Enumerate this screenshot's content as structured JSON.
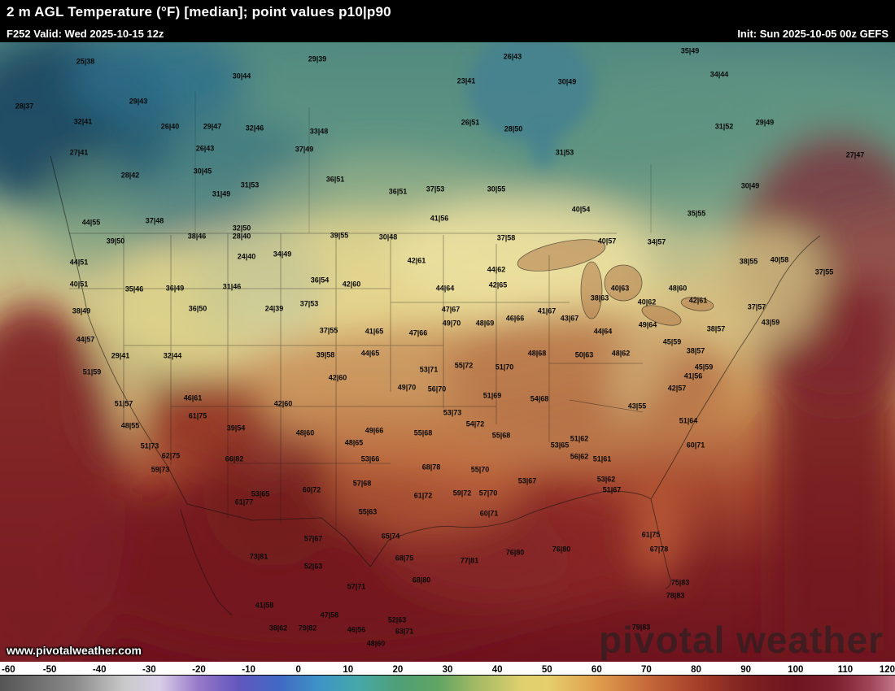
{
  "header": {
    "title": "2 m AGL Temperature (°F) [median]; point values p10|p90",
    "valid": "F252 Valid: Wed 2025-10-15 12z",
    "init": "Init: Sun 2025-10-05 00z GEFS"
  },
  "watermarks": {
    "url": "www.pivotalweather.com",
    "brand": "pivotal weather"
  },
  "colorbar": {
    "min": -60,
    "max": 120,
    "ticks": [
      -60,
      -50,
      -40,
      -30,
      -20,
      -10,
      0,
      10,
      20,
      30,
      40,
      50,
      60,
      70,
      80,
      90,
      100,
      110,
      120
    ],
    "gradient": [
      {
        "t": -60,
        "c": "#555555"
      },
      {
        "t": -45,
        "c": "#8a8a8a"
      },
      {
        "t": -35,
        "c": "#c9c9c9"
      },
      {
        "t": -28,
        "c": "#d9cfe8"
      },
      {
        "t": -20,
        "c": "#9678c8"
      },
      {
        "t": -12,
        "c": "#6257be"
      },
      {
        "t": -4,
        "c": "#4168c4"
      },
      {
        "t": 4,
        "c": "#3e93c6"
      },
      {
        "t": 12,
        "c": "#45a8a8"
      },
      {
        "t": 20,
        "c": "#4f9f77"
      },
      {
        "t": 28,
        "c": "#5fa463"
      },
      {
        "t": 35,
        "c": "#9db863"
      },
      {
        "t": 45,
        "c": "#dfd06e"
      },
      {
        "t": 50,
        "c": "#e6cf6d"
      },
      {
        "t": 60,
        "c": "#df9e4c"
      },
      {
        "t": 70,
        "c": "#c66a3b"
      },
      {
        "t": 80,
        "c": "#a6402a"
      },
      {
        "t": 90,
        "c": "#7f2220"
      },
      {
        "t": 100,
        "c": "#6d1520"
      },
      {
        "t": 108,
        "c": "#7c1f2e"
      },
      {
        "t": 115,
        "c": "#a04458"
      },
      {
        "t": 120,
        "c": "#c27687"
      }
    ]
  },
  "map_points": [
    [
      105,
      76,
      "25|38"
    ],
    [
      297,
      94,
      "30|44"
    ],
    [
      390,
      73,
      "29|39"
    ],
    [
      630,
      70,
      "26|43"
    ],
    [
      848,
      63,
      "35|49"
    ],
    [
      884,
      92,
      "34|44"
    ],
    [
      697,
      101,
      "30|49"
    ],
    [
      573,
      100,
      "23|41"
    ],
    [
      30,
      131,
      "28|37"
    ],
    [
      170,
      125,
      "29|43"
    ],
    [
      102,
      150,
      "32|41"
    ],
    [
      209,
      156,
      "26|40"
    ],
    [
      261,
      156,
      "29|47"
    ],
    [
      313,
      158,
      "32|46"
    ],
    [
      392,
      162,
      "33|48"
    ],
    [
      578,
      151,
      "26|51"
    ],
    [
      631,
      159,
      "28|50"
    ],
    [
      890,
      156,
      "31|52"
    ],
    [
      940,
      151,
      "29|49"
    ],
    [
      1051,
      191,
      "27|47"
    ],
    [
      97,
      188,
      "27|41"
    ],
    [
      252,
      183,
      "26|43"
    ],
    [
      374,
      184,
      "37|49"
    ],
    [
      694,
      188,
      "31|53"
    ],
    [
      160,
      216,
      "28|42"
    ],
    [
      249,
      211,
      "30|45"
    ],
    [
      412,
      221,
      "36|51"
    ],
    [
      307,
      228,
      "31|53"
    ],
    [
      272,
      239,
      "31|49"
    ],
    [
      489,
      236,
      "36|51"
    ],
    [
      535,
      233,
      "37|53"
    ],
    [
      610,
      233,
      "30|55"
    ],
    [
      922,
      229,
      "30|49"
    ],
    [
      856,
      263,
      "35|55"
    ],
    [
      714,
      258,
      "40|54"
    ],
    [
      540,
      269,
      "41|56"
    ],
    [
      112,
      274,
      "44|55"
    ],
    [
      190,
      272,
      "37|48"
    ],
    [
      297,
      281,
      "32|50"
    ],
    [
      142,
      297,
      "39|50"
    ],
    [
      242,
      291,
      "38|46"
    ],
    [
      297,
      291,
      "28|40"
    ],
    [
      417,
      290,
      "39|55"
    ],
    [
      477,
      292,
      "30|48"
    ],
    [
      622,
      293,
      "37|58"
    ],
    [
      746,
      297,
      "40|57"
    ],
    [
      807,
      298,
      "34|57"
    ],
    [
      920,
      322,
      "38|55"
    ],
    [
      958,
      320,
      "40|58"
    ],
    [
      1013,
      335,
      "37|55"
    ],
    [
      97,
      323,
      "44|51"
    ],
    [
      303,
      316,
      "24|40"
    ],
    [
      347,
      313,
      "34|49"
    ],
    [
      512,
      321,
      "42|61"
    ],
    [
      610,
      332,
      "44|62"
    ],
    [
      97,
      350,
      "40|51"
    ],
    [
      165,
      356,
      "35|46"
    ],
    [
      215,
      355,
      "36|49"
    ],
    [
      285,
      353,
      "31|46"
    ],
    [
      393,
      345,
      "36|54"
    ],
    [
      432,
      350,
      "42|60"
    ],
    [
      547,
      355,
      "44|64"
    ],
    [
      612,
      351,
      "42|65"
    ],
    [
      762,
      355,
      "40|63"
    ],
    [
      833,
      355,
      "48|60"
    ],
    [
      737,
      367,
      "38|63"
    ],
    [
      795,
      372,
      "40|62"
    ],
    [
      858,
      370,
      "42|61"
    ],
    [
      930,
      378,
      "37|57"
    ],
    [
      947,
      397,
      "43|59"
    ],
    [
      100,
      383,
      "38|49"
    ],
    [
      243,
      380,
      "36|50"
    ],
    [
      337,
      380,
      "24|39"
    ],
    [
      380,
      374,
      "37|53"
    ],
    [
      404,
      407,
      "37|55"
    ],
    [
      554,
      381,
      "47|67"
    ],
    [
      633,
      392,
      "46|66"
    ],
    [
      672,
      383,
      "41|67"
    ],
    [
      700,
      392,
      "43|67"
    ],
    [
      555,
      398,
      "49|70"
    ],
    [
      596,
      398,
      "48|69"
    ],
    [
      460,
      408,
      "41|65"
    ],
    [
      514,
      410,
      "47|66"
    ],
    [
      741,
      408,
      "44|64"
    ],
    [
      796,
      400,
      "49|64"
    ],
    [
      880,
      405,
      "38|57"
    ],
    [
      826,
      421,
      "45|59"
    ],
    [
      855,
      432,
      "38|57"
    ],
    [
      105,
      418,
      "44|57"
    ],
    [
      148,
      438,
      "29|41"
    ],
    [
      212,
      438,
      "32|44"
    ],
    [
      400,
      437,
      "39|58"
    ],
    [
      455,
      435,
      "44|65"
    ],
    [
      527,
      455,
      "53|71"
    ],
    [
      570,
      450,
      "55|72"
    ],
    [
      620,
      452,
      "51|70"
    ],
    [
      660,
      435,
      "48|68"
    ],
    [
      718,
      437,
      "50|63"
    ],
    [
      763,
      435,
      "48|62"
    ],
    [
      865,
      452,
      "45|59"
    ],
    [
      852,
      463,
      "41|56"
    ],
    [
      113,
      458,
      "51|59"
    ],
    [
      152,
      497,
      "51|57"
    ],
    [
      237,
      490,
      "46|61"
    ],
    [
      348,
      497,
      "42|60"
    ],
    [
      415,
      465,
      "42|60"
    ],
    [
      500,
      477,
      "49|70"
    ],
    [
      537,
      479,
      "56|70"
    ],
    [
      605,
      487,
      "51|69"
    ],
    [
      663,
      491,
      "54|68"
    ],
    [
      783,
      500,
      "43|55"
    ],
    [
      832,
      478,
      "42|57"
    ],
    [
      556,
      508,
      "53|73"
    ],
    [
      584,
      522,
      "54|72"
    ],
    [
      616,
      536,
      "55|68"
    ],
    [
      688,
      548,
      "53|65"
    ],
    [
      712,
      540,
      "51|62"
    ],
    [
      160,
      524,
      "48|55"
    ],
    [
      184,
      549,
      "51|73"
    ],
    [
      243,
      512,
      "61|75"
    ],
    [
      210,
      561,
      "62|75"
    ],
    [
      197,
      578,
      "59|73"
    ],
    [
      288,
      565,
      "66|82"
    ],
    [
      300,
      618,
      "61|77"
    ],
    [
      290,
      527,
      "39|54"
    ],
    [
      375,
      533,
      "48|60"
    ],
    [
      435,
      545,
      "48|65"
    ],
    [
      460,
      530,
      "49|66"
    ],
    [
      520,
      533,
      "55|68"
    ],
    [
      455,
      565,
      "53|66"
    ],
    [
      530,
      575,
      "68|78"
    ],
    [
      590,
      578,
      "55|70"
    ],
    [
      320,
      608,
      "53|65"
    ],
    [
      383,
      603,
      "60|72"
    ],
    [
      445,
      595,
      "57|68"
    ],
    [
      452,
      630,
      "55|63"
    ],
    [
      520,
      610,
      "61|72"
    ],
    [
      568,
      607,
      "59|72"
    ],
    [
      600,
      607,
      "57|70"
    ],
    [
      601,
      632,
      "60|71"
    ],
    [
      648,
      592,
      "53|67"
    ],
    [
      745,
      590,
      "53|62"
    ],
    [
      752,
      603,
      "51|67"
    ],
    [
      740,
      565,
      "51|61"
    ],
    [
      712,
      562,
      "56|62"
    ],
    [
      855,
      548,
      "60|71"
    ],
    [
      846,
      518,
      "51|64"
    ],
    [
      800,
      658,
      "61|75"
    ],
    [
      810,
      676,
      "67|78"
    ],
    [
      836,
      717,
      "75|83"
    ],
    [
      830,
      733,
      "78|83"
    ],
    [
      480,
      660,
      "65|74"
    ],
    [
      633,
      680,
      "76|80"
    ],
    [
      690,
      676,
      "76|80"
    ],
    [
      577,
      690,
      "77|81"
    ],
    [
      497,
      687,
      "68|75"
    ],
    [
      518,
      714,
      "68|80"
    ],
    [
      788,
      772,
      "79|83"
    ],
    [
      385,
      663,
      "57|67"
    ],
    [
      318,
      685,
      "73|81"
    ],
    [
      385,
      697,
      "52|63"
    ],
    [
      438,
      722,
      "57|71"
    ],
    [
      325,
      745,
      "41|58"
    ],
    [
      342,
      773,
      "38|62"
    ],
    [
      378,
      773,
      "79|82"
    ],
    [
      405,
      757,
      "47|58"
    ],
    [
      438,
      775,
      "46|56"
    ],
    [
      462,
      792,
      "48|60"
    ],
    [
      488,
      763,
      "52|63"
    ],
    [
      497,
      777,
      "63|71"
    ]
  ]
}
